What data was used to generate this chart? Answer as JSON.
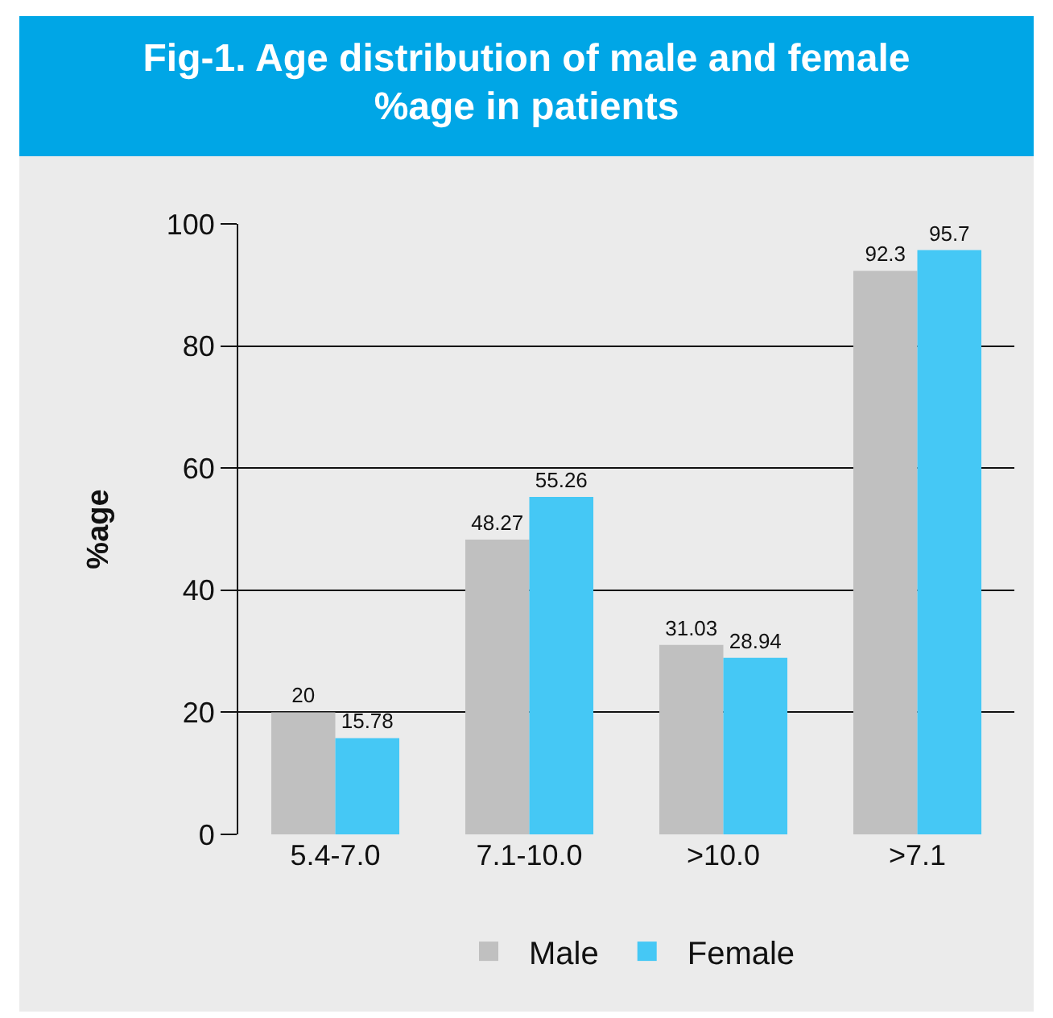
{
  "chart_data": {
    "type": "bar",
    "title": "Fig-1. Age distribution of male and female %age in patients",
    "ylabel": "%age",
    "categories": [
      "5.4-7.0",
      "7.1-10.0",
      ">10.0",
      ">7.1"
    ],
    "series": [
      {
        "name": "Male",
        "color": "#c0c0c0",
        "values": [
          20,
          48.27,
          31.03,
          92.3
        ]
      },
      {
        "name": "Female",
        "color": "#45c8f5",
        "values": [
          15.78,
          55.26,
          28.94,
          95.7
        ]
      }
    ],
    "ylim": [
      0,
      100
    ],
    "yticks": [
      0,
      20,
      40,
      60,
      80,
      100
    ],
    "grid": "y",
    "legend": "bottom",
    "data_labels": true
  }
}
